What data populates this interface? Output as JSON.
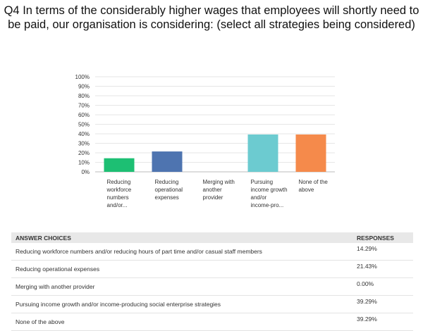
{
  "title": "Q4 In terms of the considerably higher wages that employees will shortly need to be paid, our organisation is considering: (select all strategies being considered)",
  "chart_data": {
    "type": "bar",
    "ylim": [
      0,
      100
    ],
    "yticks": [
      "0%",
      "10%",
      "20%",
      "30%",
      "40%",
      "50%",
      "60%",
      "70%",
      "80%",
      "90%",
      "100%"
    ],
    "grid": true,
    "categories": [
      [
        "Reducing",
        "workforce",
        "numbers",
        "and/or..."
      ],
      [
        "Reducing",
        "operational",
        "expenses"
      ],
      [
        "Merging with",
        "another",
        "provider"
      ],
      [
        "Pursuing",
        "income growth",
        "and/or",
        "income-pro..."
      ],
      [
        "None of the",
        "above"
      ]
    ],
    "values": [
      14.29,
      21.43,
      0.0,
      39.29,
      39.29
    ],
    "colors": [
      "#1dbf73",
      "#4e74b0",
      "#a26bc7",
      "#6ccbd0",
      "#f58a4b"
    ]
  },
  "table": {
    "header": {
      "choice": "ANSWER CHOICES",
      "responses": "RESPONSES"
    },
    "rows": [
      {
        "choice": "Reducing workforce numbers and/or reducing hours of part time and/or casual staff members",
        "response": "14.29%"
      },
      {
        "choice": "Reducing operational expenses",
        "response": "21.43%"
      },
      {
        "choice": "Merging with another provider",
        "response": "0.00%"
      },
      {
        "choice": "Pursuing income growth and/or income-producing social enterprise strategies",
        "response": "39.29%"
      },
      {
        "choice": "None of the above",
        "response": "39.29%"
      }
    ]
  }
}
